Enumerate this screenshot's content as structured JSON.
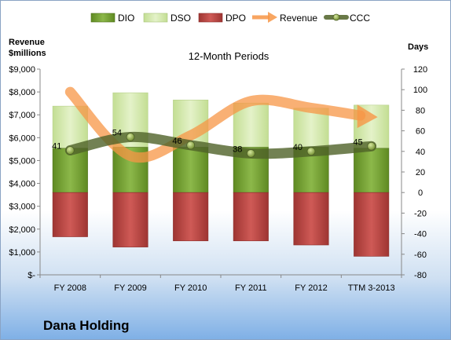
{
  "company_name": "Dana Holding",
  "chart_data": {
    "type": "bar",
    "title": "12-Month Periods",
    "left_axis_label_line1": "Revenue",
    "left_axis_label_line2": "$millions",
    "right_axis_label": "Days",
    "categories": [
      "FY 2008",
      "FY 2009",
      "FY 2010",
      "FY 2011",
      "FY 2012",
      "TTM 3-2013"
    ],
    "left_ylim": [
      0,
      9000
    ],
    "left_ticks": [
      0,
      1000,
      2000,
      3000,
      4000,
      5000,
      6000,
      7000,
      8000,
      9000
    ],
    "left_tick_labels": [
      "$-",
      "$1,000",
      "$2,000",
      "$3,000",
      "$4,000",
      "$5,000",
      "$6,000",
      "$7,000",
      "$8,000",
      "$9,000"
    ],
    "right_ylim": [
      -80,
      120
    ],
    "right_ticks": [
      -80,
      -60,
      -40,
      -20,
      0,
      20,
      40,
      60,
      80,
      100,
      120
    ],
    "right_tick_labels": [
      "-80",
      "-60",
      "-40",
      "-20",
      "0",
      "20",
      "40",
      "60",
      "80",
      "100",
      "120"
    ],
    "legend_position": "top",
    "series": [
      {
        "name": "DIO",
        "kind": "stacked-bar-positive",
        "axis": "right",
        "color": "#77a033",
        "values": [
          43,
          44,
          44,
          44,
          44,
          43
        ]
      },
      {
        "name": "DSO",
        "kind": "stacked-bar-positive",
        "axis": "right",
        "color": "#d2e9a8",
        "values": [
          41,
          53,
          46,
          43,
          38,
          42
        ]
      },
      {
        "name": "DPO",
        "kind": "bar-negative",
        "axis": "right",
        "color": "#c0504d",
        "values": [
          -43,
          -53,
          -47,
          -47,
          -51,
          -62
        ]
      },
      {
        "name": "Revenue",
        "kind": "line",
        "axis": "left",
        "color": "#f79646",
        "values": [
          8000,
          5200,
          6100,
          7600,
          7300,
          6900
        ]
      },
      {
        "name": "CCC",
        "kind": "line",
        "axis": "right",
        "color": "#4f6228",
        "values": [
          41,
          54,
          46,
          38,
          40,
          45
        ]
      }
    ],
    "ccc_labels": [
      "41",
      "54",
      "46",
      "38",
      "40",
      "45"
    ],
    "grid": false
  }
}
